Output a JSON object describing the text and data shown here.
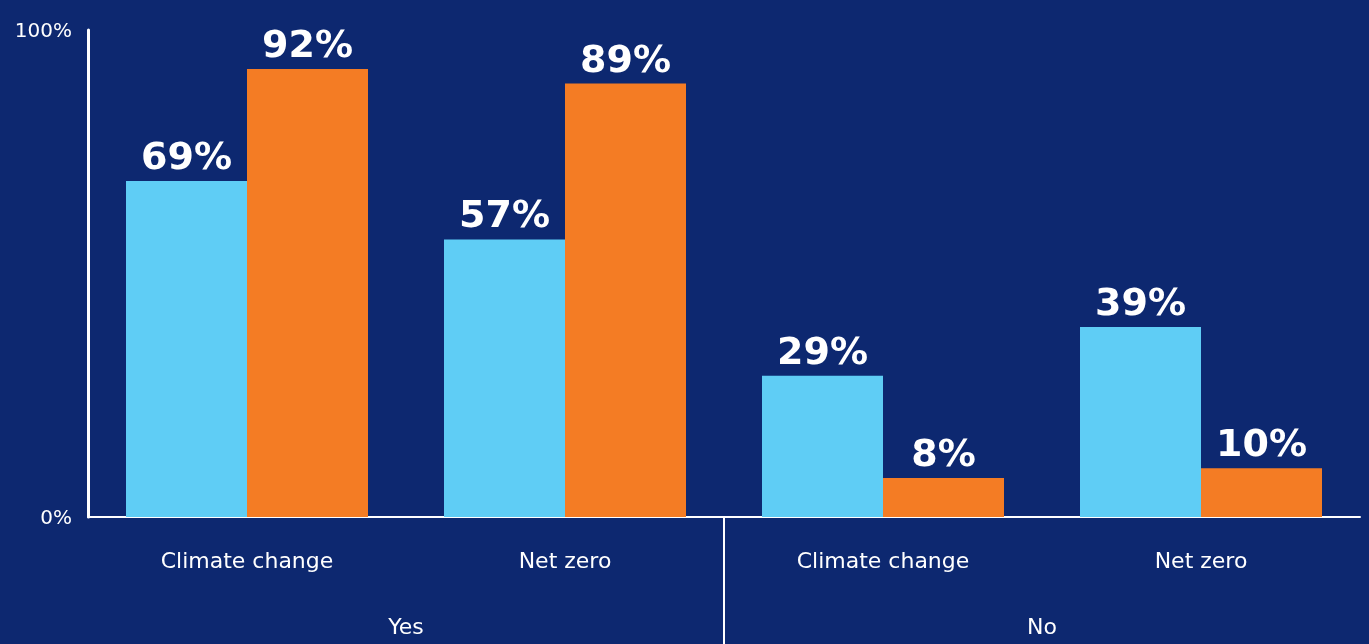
{
  "chart_data": {
    "type": "bar",
    "categories": [
      "Climate change",
      "Net zero",
      "Climate change",
      "Net zero"
    ],
    "series": [
      {
        "color": "#5fcdf5",
        "values": [
          69,
          57,
          29,
          39
        ],
        "value_labels": [
          "69%",
          "57%",
          "29%",
          "39%"
        ]
      },
      {
        "color": "#f47c24",
        "values": [
          92,
          89,
          8,
          10
        ],
        "value_labels": [
          "92%",
          "89%",
          "8%",
          "10%"
        ]
      }
    ],
    "ylim": [
      0,
      100
    ],
    "yticks": [
      {
        "value": 0,
        "label": "0%"
      },
      {
        "value": 100,
        "label": "100%"
      }
    ],
    "grid": false,
    "annotations": [
      "Yes",
      "No"
    ]
  }
}
